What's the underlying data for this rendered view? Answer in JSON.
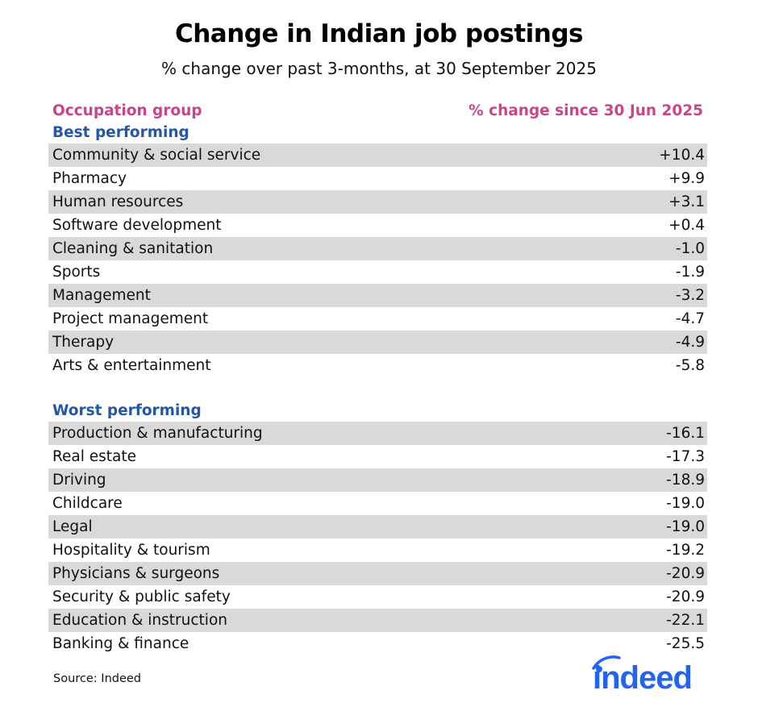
{
  "header": {
    "title": "Change in Indian job postings",
    "subtitle": "% change over past 3-months, at 30 September 2025"
  },
  "table": {
    "col_occupation": "Occupation group",
    "col_change": "% change since 30 Jun 2025",
    "best": {
      "label": "Best performing",
      "rows": [
        {
          "name": "Community & social service",
          "value": "+10.4"
        },
        {
          "name": "Pharmacy",
          "value": "+9.9"
        },
        {
          "name": "Human resources",
          "value": "+3.1"
        },
        {
          "name": "Software development",
          "value": "+0.4"
        },
        {
          "name": "Cleaning & sanitation",
          "value": "-1.0"
        },
        {
          "name": "Sports",
          "value": "-1.9"
        },
        {
          "name": "Management",
          "value": "-3.2"
        },
        {
          "name": "Project management",
          "value": "-4.7"
        },
        {
          "name": "Therapy",
          "value": "-4.9"
        },
        {
          "name": "Arts & entertainment",
          "value": "-5.8"
        }
      ]
    },
    "worst": {
      "label": "Worst performing",
      "rows": [
        {
          "name": "Production & manufacturing",
          "value": "-16.1"
        },
        {
          "name": "Real estate",
          "value": "-17.3"
        },
        {
          "name": "Driving",
          "value": "-18.9"
        },
        {
          "name": "Childcare",
          "value": "-19.0"
        },
        {
          "name": "Legal",
          "value": "-19.0"
        },
        {
          "name": "Hospitality & tourism",
          "value": "-19.2"
        },
        {
          "name": "Physicians & surgeons",
          "value": "-20.9"
        },
        {
          "name": "Security & public safety",
          "value": "-20.9"
        },
        {
          "name": "Education & instruction",
          "value": "-22.1"
        },
        {
          "name": "Banking & finance",
          "value": "-25.5"
        }
      ]
    }
  },
  "footer": {
    "source": "Source: Indeed",
    "logo_text": "indeed"
  },
  "colors": {
    "column_header": "#c9458a",
    "group_label": "#2557a7",
    "row_shade": "#d9d9d9",
    "logo": "#2164f3"
  },
  "chart_data": {
    "type": "table",
    "title": "Change in Indian job postings",
    "subtitle": "% change over past 3-months, at 30 September 2025",
    "columns": [
      "Occupation group",
      "% change since 30 Jun 2025"
    ],
    "groups": [
      {
        "name": "Best performing",
        "categories": [
          "Community & social service",
          "Pharmacy",
          "Human resources",
          "Software development",
          "Cleaning & sanitation",
          "Sports",
          "Management",
          "Project management",
          "Therapy",
          "Arts & entertainment"
        ],
        "values": [
          10.4,
          9.9,
          3.1,
          0.4,
          -1.0,
          -1.9,
          -3.2,
          -4.7,
          -4.9,
          -5.8
        ]
      },
      {
        "name": "Worst performing",
        "categories": [
          "Production & manufacturing",
          "Real estate",
          "Driving",
          "Childcare",
          "Legal",
          "Hospitality & tourism",
          "Physicians & surgeons",
          "Security & public safety",
          "Education & instruction",
          "Banking & finance"
        ],
        "values": [
          -16.1,
          -17.3,
          -18.9,
          -19.0,
          -19.0,
          -19.2,
          -20.9,
          -20.9,
          -22.1,
          -25.5
        ]
      }
    ],
    "source": "Source: Indeed"
  }
}
